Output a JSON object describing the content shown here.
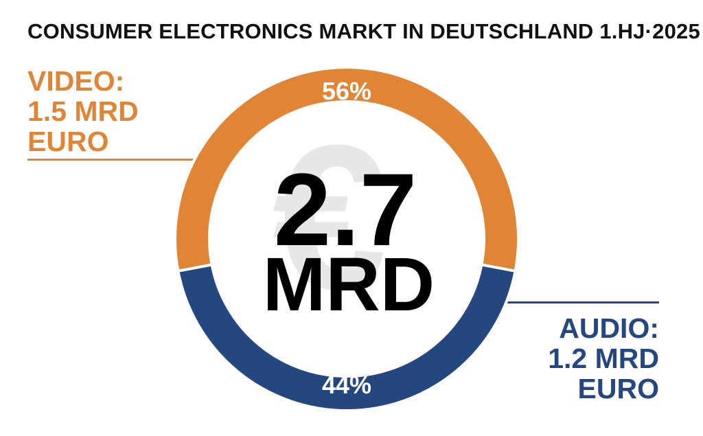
{
  "chart_data": {
    "type": "pie",
    "title": "CONSUMER ELECTRONICS MARKT IN DEUTSCHLAND 1.HJ·2025",
    "center_value": "2.7",
    "center_unit": "MRD",
    "center_symbol": "€",
    "slices": [
      {
        "key": "video",
        "label_lines": [
          "VIDEO:",
          "1.5 MRD",
          "EURO"
        ],
        "value": 1.5,
        "percent": 56,
        "percent_text": "56%",
        "color": "#E08535"
      },
      {
        "key": "audio",
        "label_lines": [
          "AUDIO:",
          "1.2 MRD",
          "EURO"
        ],
        "value": 1.2,
        "percent": 44,
        "percent_text": "44%",
        "color": "#24477F"
      }
    ]
  }
}
